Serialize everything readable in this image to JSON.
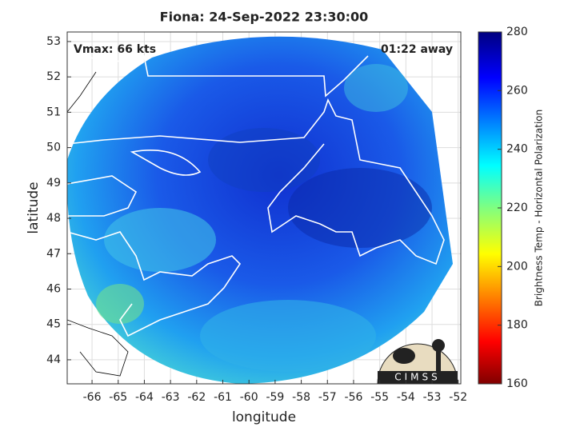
{
  "title": "Fiona: 24-Sep-2022 23:30:00",
  "annotations": {
    "vmax": "Vmax: 66 kts",
    "time_away": "01:22 away"
  },
  "x_axis": {
    "label": "longitude",
    "lim": [
      -66.95,
      -51.9
    ],
    "ticks": [
      -66,
      -65,
      -64,
      -63,
      -62,
      -61,
      -60,
      -59,
      -58,
      -57,
      -56,
      -55,
      -54,
      -53,
      -52
    ]
  },
  "y_axis": {
    "label": "latitude",
    "lim": [
      43.32,
      53.27
    ],
    "ticks": [
      44,
      45,
      46,
      47,
      48,
      49,
      50,
      51,
      52,
      53
    ]
  },
  "colorbar": {
    "label": "Brightness Temp - Horizontal Polarization",
    "lim": [
      160,
      280
    ],
    "ticks": [
      160,
      180,
      200,
      220,
      240,
      260,
      280
    ]
  },
  "logo": "CIMSS"
}
